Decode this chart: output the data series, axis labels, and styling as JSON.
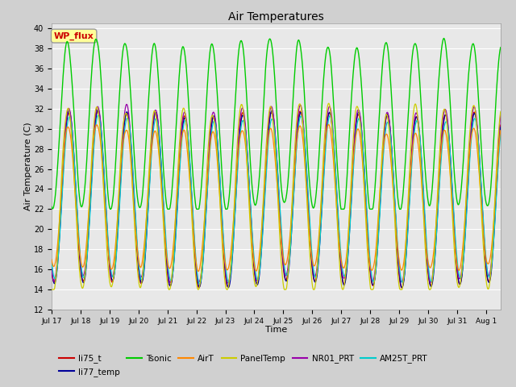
{
  "title": "Air Temperatures",
  "xlabel": "Time",
  "ylabel": "Air Temperature (C)",
  "ylim": [
    12,
    40.5
  ],
  "yticks": [
    12,
    14,
    16,
    18,
    20,
    22,
    24,
    26,
    28,
    30,
    32,
    34,
    36,
    38,
    40
  ],
  "xtick_labels": [
    "Jul 17",
    "Jul 18",
    "Jul 19",
    "Jul 20",
    "Jul 21",
    "Jul 22",
    "Jul 23",
    "Jul 24",
    "Jul 25",
    "Jul 26",
    "Jul 27",
    "Jul 28",
    "Jul 29",
    "Jul 30",
    "Jul 31",
    "Aug 1"
  ],
  "fig_bg_color": "#d0d0d0",
  "plot_bg_color": "#e8e8e8",
  "annotation_text": "WP_flux",
  "annotation_bg": "#ffff99",
  "annotation_fg": "#cc0000",
  "grid_color": "#ffffff",
  "series_colors": {
    "li75_t": "#cc0000",
    "li77_temp": "#000099",
    "Tsonic": "#00cc00",
    "AirT": "#ff8800",
    "PanelTemp": "#cccc00",
    "NR01_PRT": "#9900aa",
    "AM25T_PRT": "#00cccc"
  },
  "legend_entries": [
    "li75_t",
    "li77_temp",
    "Tsonic",
    "AirT",
    "PanelTemp",
    "NR01_PRT",
    "AM25T_PRT"
  ]
}
